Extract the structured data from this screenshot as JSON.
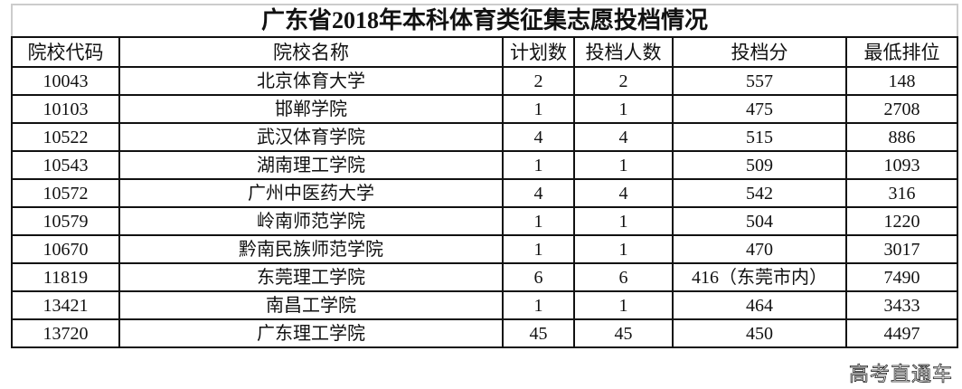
{
  "title": "广东省2018年本科体育类征集志愿投档情况",
  "headers": [
    "院校代码",
    "院校名称",
    "计划数",
    "投档人数",
    "投档分",
    "最低排位"
  ],
  "rows": [
    [
      "10043",
      "北京体育大学",
      "2",
      "2",
      "557",
      "148"
    ],
    [
      "10103",
      "邯郸学院",
      "1",
      "1",
      "475",
      "2708"
    ],
    [
      "10522",
      "武汉体育学院",
      "4",
      "4",
      "515",
      "886"
    ],
    [
      "10543",
      "湖南理工学院",
      "1",
      "1",
      "509",
      "1093"
    ],
    [
      "10572",
      "广州中医药大学",
      "4",
      "4",
      "542",
      "316"
    ],
    [
      "10579",
      "岭南师范学院",
      "1",
      "1",
      "504",
      "1220"
    ],
    [
      "10670",
      "黔南民族师范学院",
      "1",
      "1",
      "470",
      "3017"
    ],
    [
      "11819",
      "东莞理工学院",
      "6",
      "6",
      "416（东莞市内）",
      "7490"
    ],
    [
      "13421",
      "南昌工学院",
      "1",
      "1",
      "464",
      "3433"
    ],
    [
      "13720",
      "广东理工学院",
      "45",
      "45",
      "450",
      "4497"
    ]
  ],
  "watermark": "高考直通车"
}
